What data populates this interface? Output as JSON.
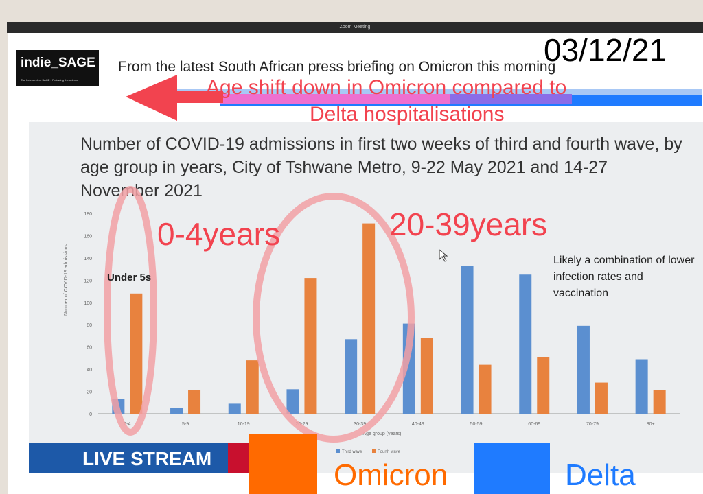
{
  "window": {
    "title": "Zoom Meeting"
  },
  "logo": {
    "name": "indie_SAGE",
    "tagline": "The Independent SAGE • Following the science"
  },
  "header": "From the latest South African press briefing on Omicron this morning",
  "date": "03/12/21",
  "annotations": {
    "line1": "Age shift down in Omicron compared to",
    "line2": "Delta hospitalisations",
    "label_0_4": "0-4years",
    "label_20_39": "20-39years",
    "under5": "Under 5s",
    "note": "Likely a combination of lower infection rates and vaccination"
  },
  "colors": {
    "third_wave": "#5b8fd0",
    "fourth_wave": "#e8823e",
    "annotation_red": "#f2434f",
    "omicron": "#ff6a00",
    "delta": "#1f7bff"
  },
  "live_stream": "LIVE STREAM",
  "legend_overlay": {
    "omicron": "Omicron",
    "delta": "Delta"
  },
  "chart_data": {
    "type": "bar",
    "title": "Number of COVID-19 admissions in first two weeks of third and fourth wave, by age group in years, City of Tshwane Metro, 9-22 May 2021 and 14-27 November 2021",
    "xlabel": "Age group (years)",
    "ylabel": "Number of COVID-19 admissions",
    "ylim": [
      0,
      180
    ],
    "yticks": [
      0,
      20,
      40,
      60,
      80,
      100,
      120,
      140,
      160,
      180
    ],
    "categories": [
      "0-4",
      "5-9",
      "10-19",
      "20-29",
      "30-39",
      "40-49",
      "50-59",
      "60-69",
      "70-79",
      "80+"
    ],
    "series": [
      {
        "name": "Third wave",
        "values": [
          13,
          5,
          9,
          22,
          67,
          81,
          133,
          125,
          79,
          49
        ]
      },
      {
        "name": "Fourth wave",
        "values": [
          108,
          21,
          48,
          122,
          171,
          68,
          44,
          51,
          28,
          21
        ]
      }
    ],
    "legend": "bottom",
    "grid": false
  }
}
